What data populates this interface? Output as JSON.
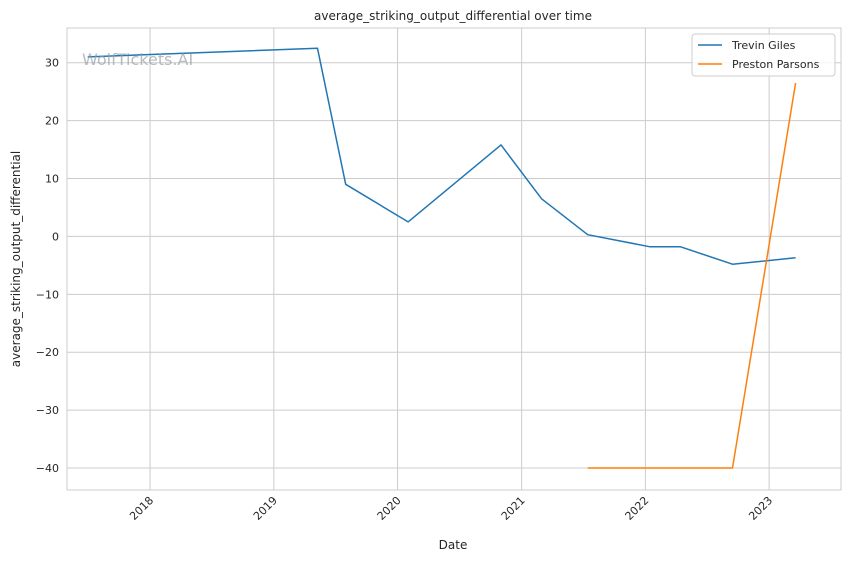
{
  "chart_data": {
    "type": "line",
    "title": "average_striking_output_differential over time",
    "xlabel": "Date",
    "ylabel": "average_striking_output_differential",
    "watermark": "WolfTickets.AI",
    "x_ticks": [
      "2018",
      "2019",
      "2020",
      "2021",
      "2022",
      "2023"
    ],
    "y_ticks": [
      30,
      20,
      10,
      0,
      -10,
      -20,
      -30,
      -40
    ],
    "xlim": [
      "2017-05-01",
      "2023-08-01"
    ],
    "ylim": [
      -43.8,
      36.0
    ],
    "grid": true,
    "legend_position": "top-right",
    "series": [
      {
        "name": "Trevin Giles",
        "color": "#1f77b4",
        "points": [
          {
            "x": "2017-07-01",
            "y": 31.0
          },
          {
            "x": "2019-05-10",
            "y": 32.5
          },
          {
            "x": "2019-08-01",
            "y": 9.0
          },
          {
            "x": "2020-02-01",
            "y": 2.5
          },
          {
            "x": "2020-11-01",
            "y": 15.8
          },
          {
            "x": "2021-03-01",
            "y": 6.5
          },
          {
            "x": "2021-07-15",
            "y": 0.3
          },
          {
            "x": "2022-01-15",
            "y": -1.8
          },
          {
            "x": "2022-04-15",
            "y": -1.8
          },
          {
            "x": "2022-09-15",
            "y": -4.8
          },
          {
            "x": "2023-03-20",
            "y": -3.7
          }
        ]
      },
      {
        "name": "Preston Parsons",
        "color": "#ff7f0e",
        "points": [
          {
            "x": "2021-07-15",
            "y": -40.0
          },
          {
            "x": "2022-09-15",
            "y": -40.0
          },
          {
            "x": "2023-03-20",
            "y": 26.5
          }
        ]
      }
    ]
  }
}
